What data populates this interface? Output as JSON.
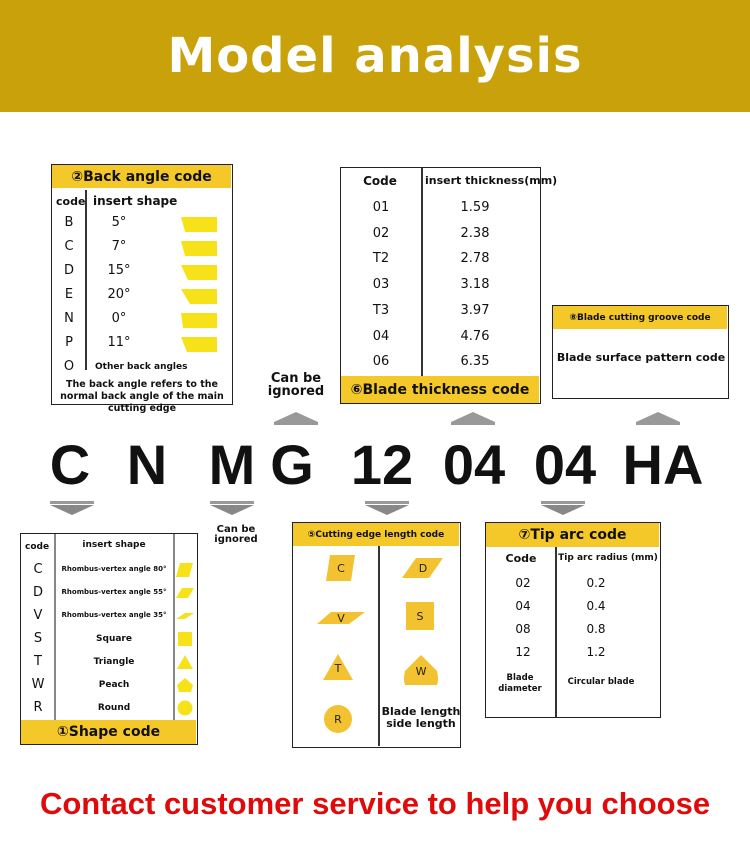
{
  "header": {
    "title": "Model analysis"
  },
  "model_code": [
    "C",
    "N",
    "M",
    "G",
    "12",
    "04",
    "04",
    "HA"
  ],
  "can_be_ignored": "Can be ignored",
  "back_angle": {
    "title": "②Back angle code",
    "col_code": "code",
    "col_shape": "insert shape",
    "rows": [
      {
        "code": "B",
        "angle": "5°"
      },
      {
        "code": "C",
        "angle": "7°"
      },
      {
        "code": "D",
        "angle": "15°"
      },
      {
        "code": "E",
        "angle": "20°"
      },
      {
        "code": "N",
        "angle": "0°"
      },
      {
        "code": "P",
        "angle": "11°"
      },
      {
        "code": "O",
        "angle": "Other back angles"
      }
    ],
    "note": "The back angle refers to the normal back angle of the main cutting edge"
  },
  "thickness": {
    "title": "⑥Blade thickness code",
    "col_code": "Code",
    "col_value": "insert thickness(mm)",
    "rows": [
      {
        "code": "01",
        "value": "1.59"
      },
      {
        "code": "02",
        "value": "2.38"
      },
      {
        "code": "T2",
        "value": "2.78"
      },
      {
        "code": "03",
        "value": "3.18"
      },
      {
        "code": "T3",
        "value": "3.97"
      },
      {
        "code": "04",
        "value": "4.76"
      },
      {
        "code": "06",
        "value": "6.35"
      }
    ]
  },
  "groove": {
    "title": "⑧Blade cutting groove code",
    "text": "Blade surface pattern code"
  },
  "shape": {
    "title": "①Shape code",
    "col_code": "code",
    "col_shape": "insert shape",
    "rows": [
      {
        "code": "C",
        "name": "Rhombus-vertex angle 80°",
        "icon": "rhombus-80"
      },
      {
        "code": "D",
        "name": "Rhombus-vertex angle 55°",
        "icon": "rhombus-55"
      },
      {
        "code": "V",
        "name": "Rhombus-vertex angle 35°",
        "icon": "rhombus-35"
      },
      {
        "code": "S",
        "name": "Square",
        "icon": "square"
      },
      {
        "code": "T",
        "name": "Triangle",
        "icon": "triangle"
      },
      {
        "code": "W",
        "name": "Peach",
        "icon": "trigon"
      },
      {
        "code": "R",
        "name": "Round",
        "icon": "circle"
      }
    ]
  },
  "cutting": {
    "title": "⑤Cutting edge length code",
    "shapes": [
      "C",
      "D",
      "V",
      "S",
      "T",
      "W",
      "R"
    ],
    "note": "Blade length side length"
  },
  "tip": {
    "title": "⑦Tip arc code",
    "col_code": "Code",
    "col_value": "Tip arc radius (mm)",
    "rows": [
      {
        "code": "02",
        "value": "0.2"
      },
      {
        "code": "04",
        "value": "0.4"
      },
      {
        "code": "08",
        "value": "0.8"
      },
      {
        "code": "12",
        "value": "1.2"
      }
    ],
    "last_code": "Blade diameter",
    "last_value": "Circular blade"
  },
  "contact": "Contact customer service to help you choose",
  "colors": {
    "gold": "#c9a20b",
    "yellow": "#f5c82a",
    "shape_yellow": "#f7e21a",
    "red": "#e00a0a"
  }
}
